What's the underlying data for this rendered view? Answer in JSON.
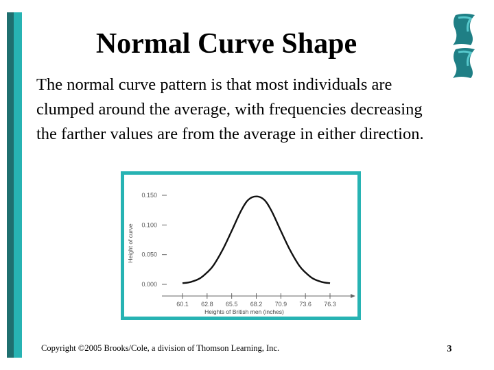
{
  "slide": {
    "title": "Normal Curve Shape",
    "body": "The normal curve pattern is that most individuals are clumped around the average, with frequencies decreasing the farther values are from the average in either direction.",
    "footer": "Copyright ©2005 Brooks/Cole, a division of Thomson Learning, Inc.",
    "page_number": "3"
  },
  "colors": {
    "accent_teal": "#27b3b3",
    "accent_dark": "#1f6f6f"
  },
  "icons": [
    "wave-decoration-icon"
  ],
  "chart_data": {
    "type": "line",
    "title": "",
    "xlabel": "Heights of British men (inches)",
    "ylabel": "Height of curve",
    "x_ticks": [
      "60.1",
      "62.8",
      "65.5",
      "68.2",
      "70.9",
      "73.6",
      "76.3"
    ],
    "y_ticks": [
      "0.150",
      "0.100",
      "0.050",
      "0.000"
    ],
    "xlim": [
      60.1,
      76.3
    ],
    "ylim": [
      0,
      0.15
    ],
    "series": [
      {
        "x": [
          60.1,
          61.0,
          62.0,
          62.8,
          63.5,
          64.5,
          65.5,
          66.5,
          67.3,
          68.2,
          69.1,
          69.9,
          70.9,
          71.9,
          72.9,
          73.6,
          74.4,
          75.4,
          76.3
        ],
        "y": [
          0.002,
          0.004,
          0.01,
          0.02,
          0.032,
          0.058,
          0.09,
          0.123,
          0.142,
          0.148,
          0.142,
          0.123,
          0.09,
          0.058,
          0.032,
          0.02,
          0.01,
          0.004,
          0.002
        ]
      }
    ],
    "grid": false,
    "legend": "none"
  }
}
